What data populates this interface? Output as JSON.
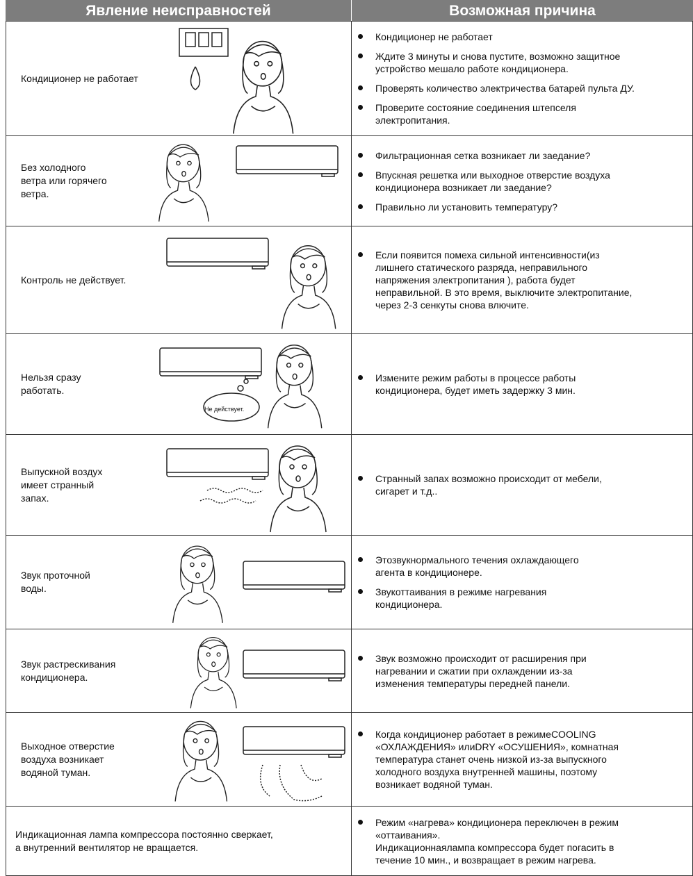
{
  "header": {
    "symptom": "Явление неисправностей",
    "cause": "Возможная причина"
  },
  "rows": [
    {
      "symptom": [
        "Кондиционер не работает"
      ],
      "causes": [
        [
          "Кондиционер не работает"
        ],
        [
          "Ждите 3 минуты и снова пустите, возможно защитное",
          "устройство мешало работе кондиционера."
        ],
        [
          "Проверять количество электричества батарей пульта ДУ."
        ],
        [
          "Проверите состояние соединения штепселя",
          "электропитания."
        ]
      ]
    },
    {
      "symptom": [
        "Без холодного",
        "ветра или горячего",
        "ветра."
      ],
      "causes": [
        [
          "Фильтрационная сетка возникает ли заедание?"
        ],
        [
          "Впускная решетка или выходное отверстие воздуха",
          "кондиционера возникает ли заедание?"
        ],
        [
          "Правильно ли установить температуру?"
        ]
      ]
    },
    {
      "symptom": [
        "Контроль не действует."
      ],
      "causes": [
        [
          "Если появится помеха сильной интенсивности(из",
          "лишнего статического разряда, неправильного",
          "напряжения электропитания ), работа будет",
          "неправильной. В это время, выключите электропитание,",
          "через 2-3 сенкуты снова влючите."
        ]
      ]
    },
    {
      "symptom": [
        "Нельзя сразу",
        "работать."
      ],
      "illustration_text": "Не действует.",
      "causes": [
        [
          "Измените режим работы в процессе работы",
          "кондиционера, будет иметь задержку 3 мин."
        ]
      ]
    },
    {
      "symptom": [
        "Выпускной воздух",
        "имеет странный",
        "запах."
      ],
      "causes": [
        [
          "Странный запах возможно происходит от мебели,",
          "сигарет и т.д.."
        ]
      ]
    },
    {
      "symptom": [
        "Звук проточной",
        "воды."
      ],
      "causes": [
        [
          "Этозвукнормального течения охлаждающего",
          "агента в кондиционере."
        ],
        [
          "Звукоттаивания в режиме нагревания",
          "кондиционера."
        ]
      ]
    },
    {
      "symptom": [
        "Звук растрескивания",
        "кондиционера."
      ],
      "causes": [
        [
          "Звук возможно происходит от расширения при",
          "нагревании и сжатии при охлаждении из-за",
          "изменения температуры передней панели."
        ]
      ]
    },
    {
      "symptom": [
        "Выходное отверстие",
        "воздуха возникает",
        "водяной туман."
      ],
      "causes": [
        [
          "Когда кондиционер работает в режимеCOOLING",
          "«ОХЛАЖДЕНИЯ» илиDRY «ОСУШЕНИЯ», комнатная",
          "температура станет очень низкой из-за выпускного",
          "холодного воздуха внутренней машины, поэтому",
          "возникает водяной туман."
        ]
      ]
    },
    {
      "symptom": [
        "Индикационная лампа компрессора постоянно сверкает,",
        "а внутренний вентилятор не вращается."
      ],
      "causes": [
        [
          "Режим «нагрева» кондиционера переключен в режим",
          "«оттаивания».",
          "Индикационнаялампа компрессора будет погасить в",
          "течение 10 мин., и возвращает в режим нагрева."
        ]
      ]
    }
  ]
}
